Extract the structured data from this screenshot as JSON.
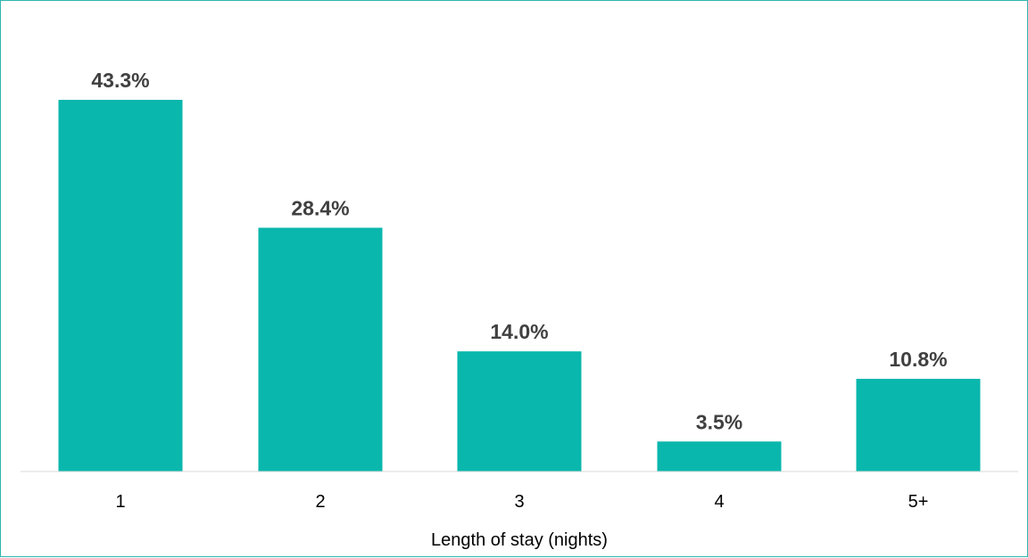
{
  "chart_data": {
    "type": "bar",
    "categories": [
      "1",
      "2",
      "3",
      "4",
      "5+"
    ],
    "values": [
      43.3,
      28.4,
      14.0,
      3.5,
      10.8
    ],
    "value_labels": [
      "43.3%",
      "28.4%",
      "14.0%",
      "3.5%",
      "10.8%"
    ],
    "xlabel": "Length of stay (nights)",
    "ylabel": "",
    "ylim": [
      0,
      45
    ],
    "grid": false,
    "legend": "none",
    "bar_color": "#0ab7ad",
    "frame_color": "#2fb5ad",
    "axis_color": "#d9d9d9",
    "label_color": "#404040"
  }
}
